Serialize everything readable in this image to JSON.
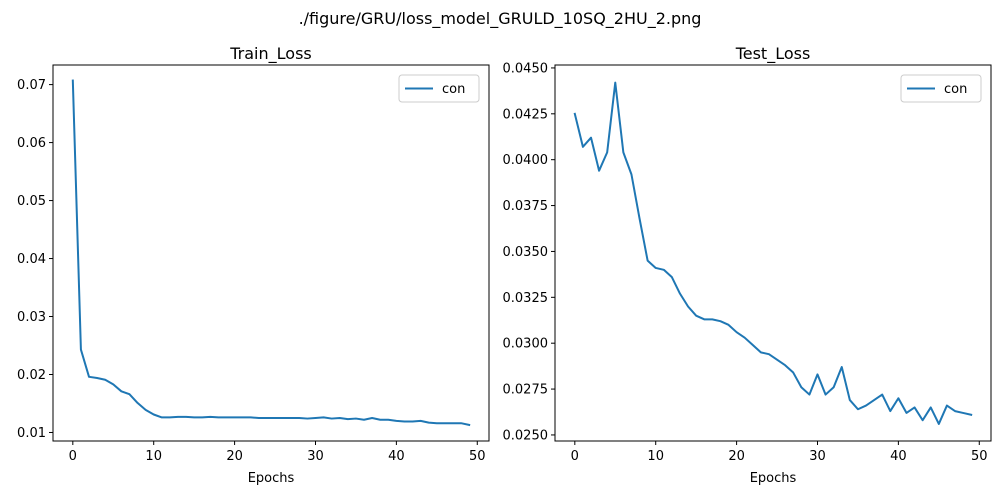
{
  "figure": {
    "suptitle": "./figure/GRU/loss_model_GRULD_10SQ_2HU_2.png"
  },
  "colors": {
    "series": "#1f77b4",
    "axis": "#000000",
    "legend_border": "#cccccc"
  },
  "chart_data": [
    {
      "type": "line",
      "title": "Train_Loss",
      "xlabel": "Epochs",
      "ylabel": "",
      "xlim": [
        -2.45,
        51.45
      ],
      "ylim": [
        0.00853,
        0.07338
      ],
      "xticks": [
        0,
        10,
        20,
        30,
        40,
        50
      ],
      "yticks": [
        0.01,
        0.02,
        0.03,
        0.04,
        0.05,
        0.06,
        0.07
      ],
      "ytick_labels": [
        "0.01",
        "0.02",
        "0.03",
        "0.04",
        "0.05",
        "0.06",
        "0.07"
      ],
      "legend_position": "upper right",
      "series": [
        {
          "name": "con",
          "x": [
            0,
            1,
            2,
            3,
            4,
            5,
            6,
            7,
            8,
            9,
            10,
            11,
            12,
            13,
            14,
            15,
            16,
            17,
            18,
            19,
            20,
            21,
            22,
            23,
            24,
            25,
            26,
            27,
            28,
            29,
            30,
            31,
            32,
            33,
            34,
            35,
            36,
            37,
            38,
            39,
            40,
            41,
            42,
            43,
            44,
            45,
            46,
            47,
            48,
            49
          ],
          "values": [
            0.0707,
            0.0243,
            0.0196,
            0.0194,
            0.0191,
            0.0183,
            0.0171,
            0.0166,
            0.0151,
            0.0139,
            0.0131,
            0.0126,
            0.0126,
            0.0127,
            0.0127,
            0.0126,
            0.0126,
            0.0127,
            0.0126,
            0.0126,
            0.0126,
            0.0126,
            0.0126,
            0.0125,
            0.0125,
            0.0125,
            0.0125,
            0.0125,
            0.0125,
            0.0124,
            0.0125,
            0.0126,
            0.0124,
            0.0125,
            0.0123,
            0.0124,
            0.0122,
            0.0125,
            0.0122,
            0.0122,
            0.012,
            0.0119,
            0.0119,
            0.012,
            0.0117,
            0.0116,
            0.0116,
            0.0116,
            0.0116,
            0.0113
          ]
        }
      ]
    },
    {
      "type": "line",
      "title": "Test_Loss",
      "xlabel": "Epochs",
      "ylabel": "",
      "xlim": [
        -2.45,
        51.45
      ],
      "ylim": [
        0.02467,
        0.04516
      ],
      "xticks": [
        0,
        10,
        20,
        30,
        40,
        50
      ],
      "yticks": [
        0.025,
        0.0275,
        0.03,
        0.0325,
        0.035,
        0.0375,
        0.04,
        0.0425,
        0.045
      ],
      "ytick_labels": [
        "0.0250",
        "0.0275",
        "0.0300",
        "0.0325",
        "0.0350",
        "0.0375",
        "0.0400",
        "0.0425",
        "0.0450"
      ],
      "legend_position": "upper right",
      "series": [
        {
          "name": "con",
          "x": [
            0,
            1,
            2,
            3,
            4,
            5,
            6,
            7,
            8,
            9,
            10,
            11,
            12,
            13,
            14,
            15,
            16,
            17,
            18,
            19,
            20,
            21,
            22,
            23,
            24,
            25,
            26,
            27,
            28,
            29,
            30,
            31,
            32,
            33,
            34,
            35,
            36,
            37,
            38,
            39,
            40,
            41,
            42,
            43,
            44,
            45,
            46,
            47,
            48,
            49
          ],
          "values": [
            0.0425,
            0.0407,
            0.0412,
            0.0394,
            0.0404,
            0.0442,
            0.0404,
            0.0392,
            0.0368,
            0.0345,
            0.0341,
            0.034,
            0.0336,
            0.0327,
            0.032,
            0.0315,
            0.0313,
            0.0313,
            0.0312,
            0.031,
            0.0306,
            0.0303,
            0.0299,
            0.0295,
            0.0294,
            0.0291,
            0.0288,
            0.0284,
            0.0276,
            0.0272,
            0.0283,
            0.0272,
            0.0276,
            0.0287,
            0.0269,
            0.0264,
            0.0266,
            0.0269,
            0.0272,
            0.0263,
            0.027,
            0.0262,
            0.0265,
            0.0258,
            0.0265,
            0.0256,
            0.0266,
            0.0263,
            0.0262,
            0.0261
          ]
        }
      ]
    }
  ]
}
